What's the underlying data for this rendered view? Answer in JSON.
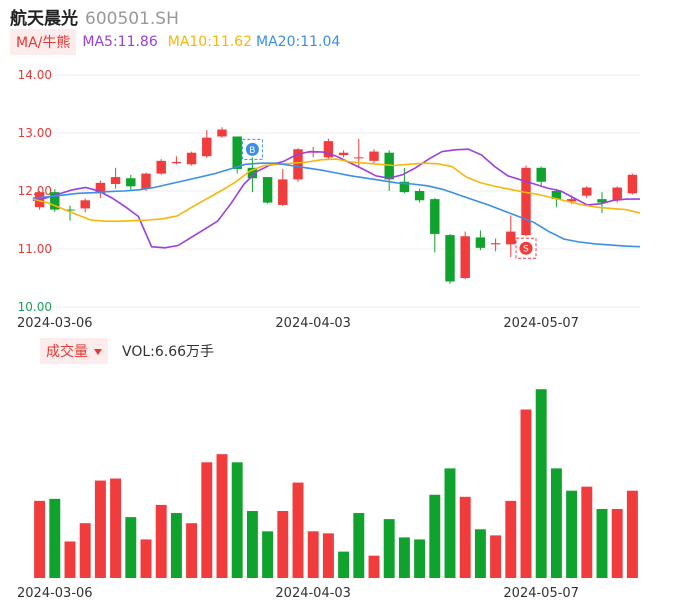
{
  "header": {
    "name": "航天晨光",
    "code": "600501.SH"
  },
  "ma_bar": {
    "indicator_label": "MA/牛熊",
    "ma5": "MA5:11.86",
    "ma10": "MA10:11.62",
    "ma20": "MA20:11.04"
  },
  "volume_bar": {
    "indicator_label": "成交量",
    "vol_text": "VOL:6.66万手"
  },
  "colors": {
    "up": "#f03c3c",
    "down": "#0fa32e",
    "ma5": "#9b3fe0",
    "ma10": "#f5b70a",
    "ma20": "#3b8fe8",
    "axis_text": "#e53935",
    "grid": "#eeeeee"
  },
  "chart_data": [
    {
      "type": "candlestick",
      "title": "",
      "ylim": [
        10.0,
        14.0
      ],
      "yticks": [
        "14.00",
        "13.00",
        "12.00",
        "11.00",
        "10.00"
      ],
      "xticks": [
        {
          "label": "2024-03-06",
          "index": 1
        },
        {
          "label": "2024-04-03",
          "index": 18
        },
        {
          "label": "2024-05-07",
          "index": 33
        }
      ],
      "markers": [
        {
          "label": "B",
          "index": 14
        },
        {
          "label": "S",
          "index": 32
        }
      ],
      "candles": [
        {
          "open": 11.72,
          "close": 11.98,
          "high": 12.0,
          "low": 11.68
        },
        {
          "open": 11.98,
          "close": 11.68,
          "high": 12.03,
          "low": 11.64
        },
        {
          "open": 11.68,
          "close": 11.67,
          "high": 11.75,
          "low": 11.49
        },
        {
          "open": 11.7,
          "close": 11.84,
          "high": 11.87,
          "low": 11.63
        },
        {
          "open": 11.96,
          "close": 12.14,
          "high": 12.18,
          "low": 11.88
        },
        {
          "open": 12.12,
          "close": 12.24,
          "high": 12.4,
          "low": 12.04
        },
        {
          "open": 12.22,
          "close": 12.08,
          "high": 12.28,
          "low": 12.02
        },
        {
          "open": 12.04,
          "close": 12.3,
          "high": 12.32,
          "low": 12.0
        },
        {
          "open": 12.3,
          "close": 12.52,
          "high": 12.55,
          "low": 12.28
        },
        {
          "open": 12.48,
          "close": 12.5,
          "high": 12.6,
          "low": 12.46
        },
        {
          "open": 12.46,
          "close": 12.66,
          "high": 12.68,
          "low": 12.44
        },
        {
          "open": 12.6,
          "close": 12.92,
          "high": 13.05,
          "low": 12.57
        },
        {
          "open": 12.94,
          "close": 13.06,
          "high": 13.1,
          "low": 12.92
        },
        {
          "open": 12.94,
          "close": 12.38,
          "high": 12.94,
          "low": 12.3
        },
        {
          "open": 12.4,
          "close": 12.22,
          "high": 12.58,
          "low": 11.98
        },
        {
          "open": 12.24,
          "close": 11.8,
          "high": 12.24,
          "low": 11.78
        },
        {
          "open": 11.76,
          "close": 12.2,
          "high": 12.38,
          "low": 11.74
        },
        {
          "open": 12.2,
          "close": 12.72,
          "high": 12.74,
          "low": 12.16
        },
        {
          "open": 12.66,
          "close": 12.68,
          "high": 12.76,
          "low": 12.58
        },
        {
          "open": 12.58,
          "close": 12.86,
          "high": 12.9,
          "low": 12.56
        },
        {
          "open": 12.62,
          "close": 12.66,
          "high": 12.7,
          "low": 12.58
        },
        {
          "open": 12.58,
          "close": 12.58,
          "high": 12.9,
          "low": 12.42
        },
        {
          "open": 12.52,
          "close": 12.68,
          "high": 12.72,
          "low": 12.46
        },
        {
          "open": 12.66,
          "close": 12.2,
          "high": 12.7,
          "low": 12.0
        },
        {
          "open": 12.16,
          "close": 11.98,
          "high": 12.4,
          "low": 11.96
        },
        {
          "open": 12.0,
          "close": 11.84,
          "high": 12.04,
          "low": 11.8
        },
        {
          "open": 11.86,
          "close": 11.26,
          "high": 11.88,
          "low": 10.94
        },
        {
          "open": 11.24,
          "close": 10.44,
          "high": 11.26,
          "low": 10.4
        },
        {
          "open": 10.5,
          "close": 11.22,
          "high": 11.3,
          "low": 10.48
        },
        {
          "open": 11.2,
          "close": 11.02,
          "high": 11.32,
          "low": 10.98
        },
        {
          "open": 11.08,
          "close": 11.1,
          "high": 11.18,
          "low": 10.96
        },
        {
          "open": 11.08,
          "close": 11.3,
          "high": 11.58,
          "low": 10.86
        },
        {
          "open": 11.24,
          "close": 12.4,
          "high": 12.44,
          "low": 11.22
        },
        {
          "open": 12.4,
          "close": 12.16,
          "high": 12.42,
          "low": 12.1
        },
        {
          "open": 12.0,
          "close": 11.86,
          "high": 12.04,
          "low": 11.72
        },
        {
          "open": 11.82,
          "close": 11.86,
          "high": 11.92,
          "low": 11.78
        },
        {
          "open": 11.92,
          "close": 12.06,
          "high": 12.08,
          "low": 11.88
        },
        {
          "open": 11.86,
          "close": 11.8,
          "high": 11.98,
          "low": 11.62
        },
        {
          "open": 11.84,
          "close": 12.06,
          "high": 12.08,
          "low": 11.8
        },
        {
          "open": 11.96,
          "close": 12.28,
          "high": 12.3,
          "low": 11.94
        }
      ],
      "ma_lines": {
        "MA5": [
          11.84,
          11.88,
          11.95,
          12.02,
          12.06,
          12.0,
          11.88,
          11.73,
          11.56,
          11.04,
          11.02,
          11.06,
          11.2,
          11.34,
          11.48,
          11.78,
          12.12,
          12.34,
          12.45,
          12.51,
          12.63,
          12.68,
          12.67,
          12.6,
          12.49,
          12.38,
          12.26,
          12.22,
          12.28,
          12.4,
          12.55,
          12.68,
          12.71,
          12.72,
          12.62,
          12.42,
          12.26,
          12.19,
          12.12,
          12.05,
          12.0,
          11.88,
          11.76,
          11.78,
          11.84,
          11.86,
          11.86
        ],
        "MA10": [
          11.86,
          11.8,
          11.7,
          11.6,
          11.5,
          11.48,
          11.48,
          11.49,
          11.5,
          11.52,
          11.57,
          11.72,
          11.86,
          12.0,
          12.15,
          12.34,
          12.44,
          12.46,
          12.48,
          12.5,
          12.54,
          12.55,
          12.5,
          12.48,
          12.46,
          12.44,
          12.46,
          12.48,
          12.47,
          12.42,
          12.24,
          12.14,
          12.08,
          12.03,
          11.98,
          11.94,
          11.88,
          11.82,
          11.76,
          11.72,
          11.7,
          11.68,
          11.62
        ],
        "MA20": [
          11.88,
          11.9,
          11.93,
          11.96,
          11.97,
          11.99,
          12.0,
          12.02,
          12.06,
          12.12,
          12.18,
          12.24,
          12.3,
          12.38,
          12.46,
          12.48,
          12.48,
          12.44,
          12.4,
          12.36,
          12.31,
          12.26,
          12.22,
          12.18,
          12.14,
          12.12,
          12.09,
          12.03,
          11.94,
          11.85,
          11.76,
          11.66,
          11.56,
          11.46,
          11.3,
          11.17,
          11.12,
          11.09,
          11.07,
          11.05,
          11.04
        ]
      }
    },
    {
      "type": "bar",
      "title": "",
      "ylim": [
        0,
        100
      ],
      "values": [
        38,
        39,
        18,
        27,
        48,
        49,
        30,
        19,
        36,
        32,
        27,
        57,
        61,
        57,
        33,
        23,
        33,
        47,
        23,
        22,
        13,
        32,
        11,
        29,
        20,
        19,
        41,
        54,
        40,
        24,
        21,
        38,
        83,
        93,
        54,
        43,
        45,
        34,
        34,
        43
      ],
      "colors": [
        "up",
        "down",
        "up",
        "up",
        "up",
        "up",
        "down",
        "up",
        "up",
        "down",
        "up",
        "up",
        "up",
        "down",
        "down",
        "down",
        "up",
        "up",
        "up",
        "up",
        "down",
        "down",
        "up",
        "down",
        "down",
        "down",
        "down",
        "down",
        "up",
        "down",
        "up",
        "up",
        "up",
        "down",
        "down",
        "down",
        "up",
        "down",
        "up",
        "up"
      ]
    }
  ]
}
